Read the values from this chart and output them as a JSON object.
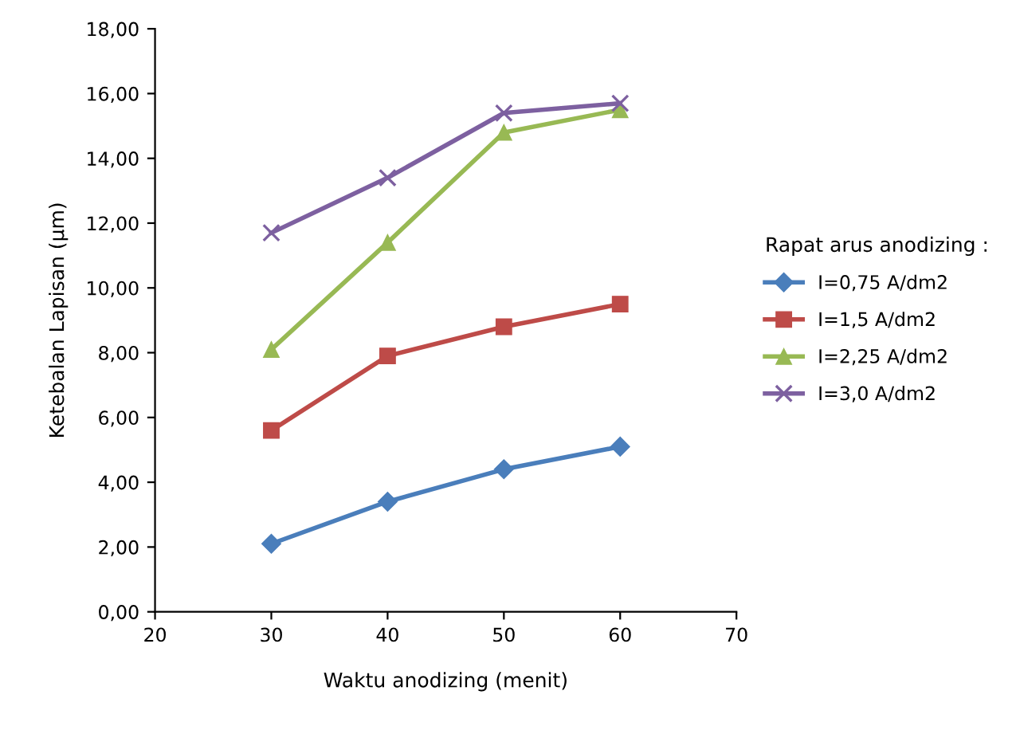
{
  "chart_data": {
    "type": "line",
    "xlabel": "Waktu anodizing (menit)",
    "ylabel": "Ketebalan Lapisan (µm)",
    "legend_title": "Rapat arus anodizing :",
    "x": [
      30,
      40,
      50,
      60
    ],
    "series": [
      {
        "name": "I=0,75 A/dm2",
        "color": "#4a7ebb",
        "marker": "diamond",
        "values": [
          2.1,
          3.4,
          4.4,
          5.1
        ]
      },
      {
        "name": "I=1,5 A/dm2",
        "color": "#be4b48",
        "marker": "square",
        "values": [
          5.6,
          7.9,
          8.8,
          9.5
        ]
      },
      {
        "name": "I=2,25 A/dm2",
        "color": "#98b954",
        "marker": "triangle",
        "values": [
          8.1,
          11.4,
          14.8,
          15.5
        ]
      },
      {
        "name": "I=3,0 A/dm2",
        "color": "#7d60a0",
        "marker": "cross",
        "values": [
          11.7,
          13.4,
          15.4,
          15.7
        ]
      }
    ],
    "xlim": [
      20,
      70
    ],
    "xticks": [
      20,
      30,
      40,
      50,
      60,
      70
    ],
    "ylim": [
      0,
      18
    ],
    "yticks": [
      {
        "value": 0,
        "label": "0,00"
      },
      {
        "value": 2,
        "label": "2,00"
      },
      {
        "value": 4,
        "label": "4,00"
      },
      {
        "value": 6,
        "label": "6,00"
      },
      {
        "value": 8,
        "label": "8,00"
      },
      {
        "value": 10,
        "label": "10,00"
      },
      {
        "value": 12,
        "label": "12,00"
      },
      {
        "value": 14,
        "label": "14,00"
      },
      {
        "value": 16,
        "label": "16,00"
      },
      {
        "value": 18,
        "label": "18,00"
      }
    ],
    "grid": false,
    "legend": "right",
    "line_style": "solid"
  }
}
